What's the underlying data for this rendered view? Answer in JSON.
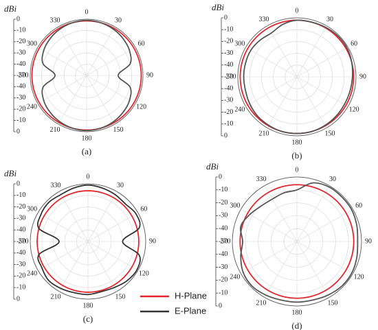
{
  "chart_data": [
    {
      "type": "polar",
      "radial_label": "dBi",
      "caption": "(a)",
      "theta": [
        0,
        15,
        30,
        45,
        60,
        75,
        90,
        105,
        120,
        135,
        150,
        165,
        180,
        195,
        210,
        225,
        240,
        255,
        270,
        285,
        300,
        315,
        330,
        345
      ],
      "rlim": [
        -50,
        0
      ],
      "rticks": [
        0,
        -10,
        -20,
        -30,
        -40,
        -50,
        -40,
        -30,
        -20,
        -10,
        0
      ],
      "thetaticks": [
        0,
        30,
        60,
        90,
        120,
        150,
        180,
        210,
        240,
        270,
        300,
        330
      ],
      "series": [
        {
          "color": "#e3262b",
          "values": [
            -1.5,
            -1.5,
            -1.5,
            -1.5,
            -1.5,
            -1.5,
            -1.5,
            -1.5,
            -1.5,
            -1.5,
            -1.5,
            -1.5,
            -1.5,
            -1.5,
            -1.5,
            -1.5,
            -1.5,
            -1.5,
            -1.5,
            -1.5,
            -1.5,
            -1.5,
            -1.5,
            -1.5
          ]
        },
        {
          "color": "#555555",
          "values": [
            -1,
            -1.5,
            -2.5,
            -4,
            -6,
            -10,
            -22,
            -10,
            -6,
            -4,
            -2.5,
            -1.5,
            -1,
            -1.5,
            -2.5,
            -4,
            -6,
            -10,
            -22,
            -10,
            -6,
            -4,
            -2.5,
            -1.5
          ]
        }
      ]
    },
    {
      "type": "polar",
      "radial_label": "dBi",
      "caption": "(b)",
      "theta": [
        0,
        15,
        30,
        45,
        60,
        75,
        90,
        105,
        120,
        135,
        150,
        165,
        180,
        195,
        210,
        225,
        240,
        255,
        270,
        285,
        300,
        315,
        330,
        345
      ],
      "rlim": [
        -50,
        0
      ],
      "rticks": [
        0,
        -10,
        -20,
        -30,
        -40,
        -50,
        -40,
        -30,
        -20,
        -10,
        0
      ],
      "thetaticks": [
        0,
        30,
        60,
        90,
        120,
        150,
        180,
        210,
        240,
        270,
        300,
        330
      ],
      "series": [
        {
          "color": "#e3262b",
          "values": [
            -2,
            -2,
            -2,
            -2,
            -2,
            -2,
            -2,
            -2,
            -2,
            -2,
            -2,
            -2,
            -2,
            -2,
            -2,
            -2,
            -2,
            -2,
            -2,
            -2,
            -2,
            -2,
            -2,
            -2
          ]
        },
        {
          "color": "#555555",
          "values": [
            -2,
            -2,
            -1.5,
            -1,
            -1,
            -2,
            -3,
            -3.5,
            -3.5,
            -3,
            -2.5,
            -2,
            -2,
            -2,
            -2.5,
            -3,
            -4,
            -5,
            -5,
            -5,
            -5,
            -6,
            -7,
            -4
          ]
        }
      ]
    },
    {
      "type": "polar",
      "radial_label": "dBi",
      "caption": "(c)",
      "theta": [
        0,
        15,
        30,
        45,
        60,
        75,
        90,
        105,
        120,
        135,
        150,
        165,
        180,
        195,
        210,
        225,
        240,
        255,
        270,
        285,
        300,
        315,
        330,
        345
      ],
      "rlim": [
        -50,
        0
      ],
      "rticks": [
        0,
        -10,
        -20,
        -30,
        -40,
        -50,
        -40,
        -30,
        -20,
        -10,
        0
      ],
      "thetaticks": [
        0,
        30,
        60,
        90,
        120,
        150,
        180,
        210,
        240,
        270,
        300,
        330
      ],
      "series": [
        {
          "name": "H-Plane",
          "color": "#e3262b",
          "values": [
            -6,
            -6,
            -6,
            -6,
            -6,
            -6,
            -6,
            -6,
            -6,
            -6,
            -6,
            -6,
            -6,
            -6,
            -6,
            -6,
            -6,
            -6,
            -6,
            -6,
            -6,
            -6,
            -6,
            -6
          ]
        },
        {
          "name": "E-Plane",
          "color": "#333333",
          "values": [
            -1,
            -2,
            -3,
            -4,
            -2,
            -4,
            -20,
            -4,
            -1,
            -2,
            -4,
            -5,
            -4,
            -4,
            -3,
            -2,
            -4,
            -6,
            -25,
            -6,
            -3,
            -2,
            -3,
            -2
          ]
        }
      ]
    },
    {
      "type": "polar",
      "radial_label": "dBi",
      "caption": "(d)",
      "theta": [
        0,
        15,
        30,
        45,
        60,
        75,
        90,
        105,
        120,
        135,
        150,
        165,
        180,
        195,
        210,
        225,
        240,
        255,
        270,
        285,
        300,
        315,
        330,
        345
      ],
      "rlim": [
        -50,
        0
      ],
      "rticks": [
        0,
        -10,
        -20,
        -30,
        -40,
        -50,
        -40,
        -30,
        -20,
        -10,
        0
      ],
      "thetaticks": [
        0,
        30,
        60,
        90,
        120,
        150,
        180,
        210,
        240,
        270,
        300,
        330
      ],
      "series": [
        {
          "color": "#e3262b",
          "values": [
            -6,
            -6,
            -6,
            -6,
            -6,
            -6,
            -6,
            -6,
            -6,
            -6,
            -6,
            -6,
            -6,
            -6,
            -6,
            -6,
            -6,
            -6,
            -6,
            -6,
            -6,
            -6,
            -6,
            -6
          ]
        },
        {
          "color": "#555555",
          "values": [
            -10,
            -3,
            -1,
            -1,
            -1,
            -2,
            -3,
            -2,
            -1,
            -1,
            -2,
            -3,
            -3,
            -3,
            -2,
            -1,
            -2,
            -5,
            -8,
            -5,
            -8,
            -11,
            -12,
            -11
          ]
        }
      ]
    }
  ]
}
